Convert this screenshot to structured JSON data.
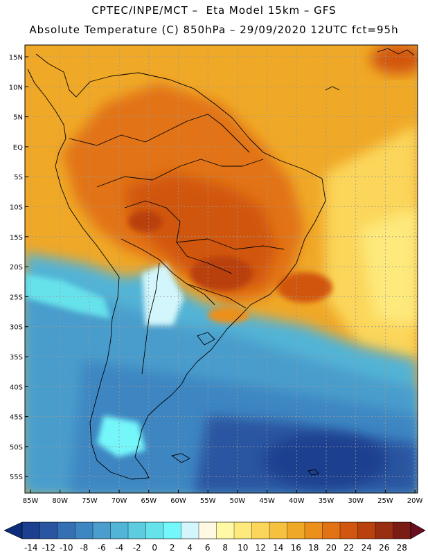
{
  "header": {
    "line1": "CPTEC/INPE/MCT –  Eta Model 15km – GFS",
    "line2": "Absolute Temperature (C) 850hPa – 29/09/2020 12UTC fct=95h"
  },
  "lat_labels": [
    "15N",
    "10N",
    "5N",
    "EQ",
    "5S",
    "10S",
    "15S",
    "20S",
    "25S",
    "30S",
    "35S",
    "40S",
    "45S",
    "50S",
    "55S"
  ],
  "lon_labels": [
    "85W",
    "80W",
    "75W",
    "70W",
    "65W",
    "60W",
    "55W",
    "50W",
    "45W",
    "40W",
    "35W",
    "30W",
    "25W",
    "20W"
  ],
  "colorbar": {
    "labels": [
      "-14",
      "-12",
      "-10",
      "-8",
      "-6",
      "-4",
      "-2",
      "0",
      "2",
      "4",
      "6",
      "8",
      "10",
      "12",
      "14",
      "16",
      "18",
      "20",
      "22",
      "24",
      "26",
      "28"
    ],
    "colors": [
      "#1d3f8f",
      "#2a55a0",
      "#3470b3",
      "#3d86c2",
      "#4a9dcc",
      "#52b4d6",
      "#5dcce0",
      "#66e2eb",
      "#74f7fa",
      "#d2f6fb",
      "#fff8e2",
      "#fff9a6",
      "#fde97c",
      "#fbd65a",
      "#f6c13e",
      "#f0a827",
      "#ec901c",
      "#e27314",
      "#d15710",
      "#b9410e",
      "#9a2e10",
      "#7a1b14"
    ],
    "left_arrow_color": "#0d2d7a",
    "right_arrow_color": "#6a0d1f"
  },
  "colors": {
    "ocean_cold_deep": "#1d3f8f",
    "ocean_cold": "#3470b3",
    "ocean_cool": "#4a9dcc",
    "cold_light": "#66e2eb",
    "warm_sea": "#f6c13e",
    "warm_land": "#e27314",
    "hot_land": "#d15710"
  }
}
